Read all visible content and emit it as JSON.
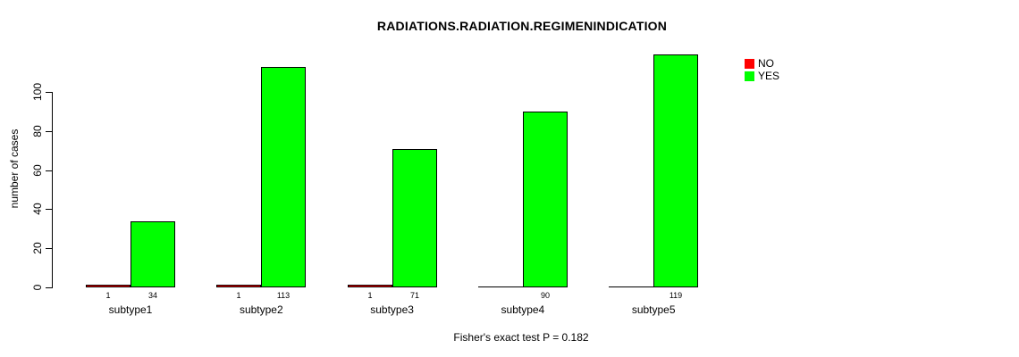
{
  "chart_data": {
    "type": "bar",
    "title": "RADIATIONS.RADIATION.REGIMENINDICATION",
    "categories": [
      "subtype1",
      "subtype2",
      "subtype3",
      "subtype4",
      "subtype5"
    ],
    "series": [
      {
        "name": "NO",
        "color": "#ff0000",
        "values": [
          1,
          1,
          1,
          0,
          0
        ]
      },
      {
        "name": "YES",
        "color": "#00ff00",
        "values": [
          34,
          113,
          71,
          90,
          119
        ]
      }
    ],
    "xlabel": "",
    "ylabel": "number of cases",
    "ylim": [
      0,
      100
    ],
    "yticks": [
      0,
      20,
      40,
      60,
      80,
      100
    ],
    "grid": false,
    "legend_position": "top-right",
    "bar_value_labels_shown_for_nonzero_only": true,
    "annotation": "Fisher's exact test P = 0.182"
  }
}
